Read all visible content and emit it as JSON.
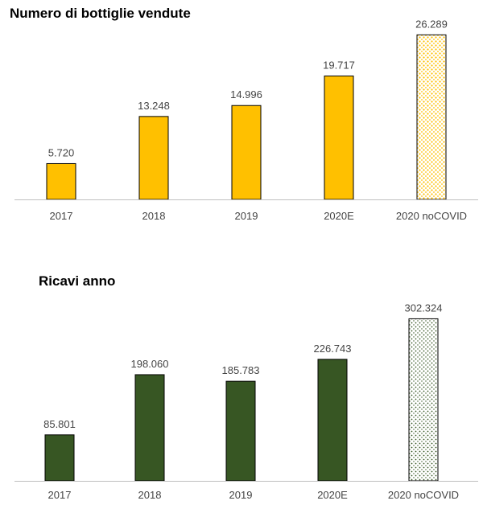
{
  "chart_data": [
    {
      "type": "bar",
      "title": "Numero di bottiglie vendute",
      "categories": [
        "2017",
        "2018",
        "2019",
        "2020E",
        "2020 noCOVID"
      ],
      "values": [
        5720,
        13248,
        14996,
        19717,
        26289
      ],
      "value_labels": [
        "5.720",
        "13.248",
        "14.996",
        "19.717",
        "26.289"
      ],
      "ylim": [
        0,
        28000
      ],
      "grid": false,
      "colors": {
        "bar": "#FFC000",
        "pattern_fill": "#FFC000",
        "border": "#000000"
      },
      "last_bar_style": "dotted pattern"
    },
    {
      "type": "bar",
      "title": "Ricavi anno",
      "categories": [
        "2017",
        "2018",
        "2019",
        "2020E",
        "2020 noCOVID"
      ],
      "values": [
        85801,
        198060,
        185783,
        226743,
        302324
      ],
      "value_labels": [
        "85.801",
        "198.060",
        "185.783",
        "226.743",
        "302.324"
      ],
      "ylim": [
        0,
        330000
      ],
      "grid": false,
      "colors": {
        "bar": "#375623",
        "pattern_fill": "#375623",
        "border": "#000000"
      },
      "last_bar_style": "dotted pattern"
    }
  ]
}
